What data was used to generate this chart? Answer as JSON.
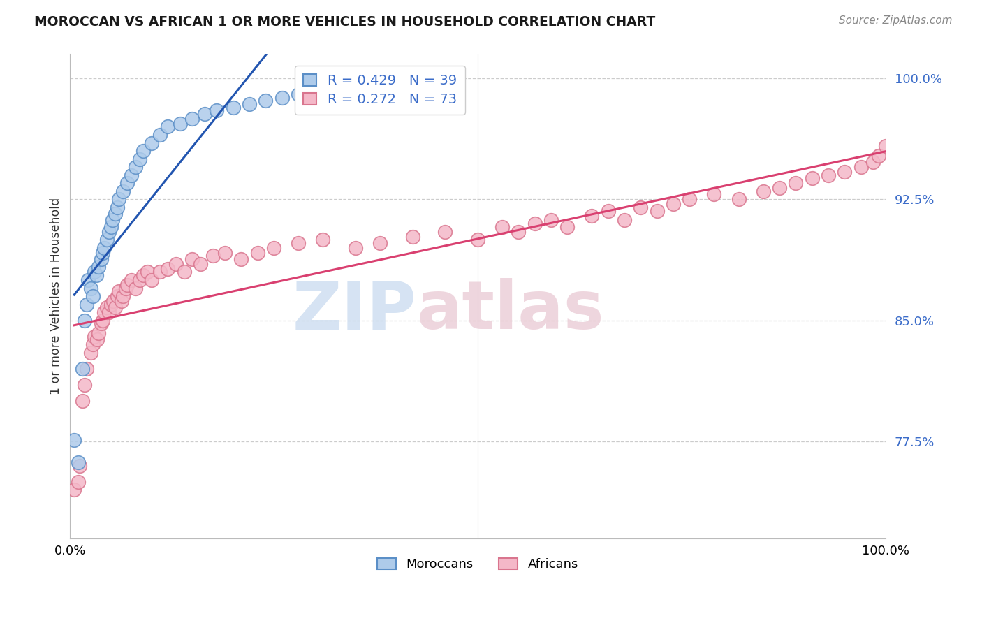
{
  "title": "MOROCCAN VS AFRICAN 1 OR MORE VEHICLES IN HOUSEHOLD CORRELATION CHART",
  "source": "Source: ZipAtlas.com",
  "ylabel": "1 or more Vehicles in Household",
  "xlim": [
    0.0,
    1.0
  ],
  "ylim": [
    0.715,
    1.015
  ],
  "yticks": [
    0.775,
    0.85,
    0.925,
    1.0
  ],
  "ytick_labels": [
    "77.5%",
    "85.0%",
    "92.5%",
    "100.0%"
  ],
  "legend_r1": "R = 0.429",
  "legend_n1": "N = 39",
  "legend_r2": "R = 0.272",
  "legend_n2": "N = 73",
  "moroccan_color": "#aecbea",
  "african_color": "#f4b8c8",
  "moroccan_edge": "#5b8fc7",
  "african_edge": "#d9758e",
  "trend_moroccan": "#2255b0",
  "trend_african": "#d94070",
  "background": "#ffffff",
  "grid_color": "#cccccc",
  "moroccan_x": [
    0.005,
    0.01,
    0.015,
    0.018,
    0.02,
    0.022,
    0.025,
    0.028,
    0.03,
    0.032,
    0.035,
    0.038,
    0.04,
    0.042,
    0.045,
    0.048,
    0.05,
    0.052,
    0.055,
    0.058,
    0.06,
    0.065,
    0.07,
    0.075,
    0.08,
    0.085,
    0.09,
    0.1,
    0.11,
    0.12,
    0.135,
    0.15,
    0.165,
    0.18,
    0.2,
    0.22,
    0.24,
    0.26,
    0.28
  ],
  "moroccan_y": [
    0.776,
    0.762,
    0.82,
    0.85,
    0.86,
    0.875,
    0.87,
    0.865,
    0.88,
    0.878,
    0.883,
    0.888,
    0.892,
    0.895,
    0.9,
    0.905,
    0.908,
    0.912,
    0.916,
    0.92,
    0.925,
    0.93,
    0.935,
    0.94,
    0.945,
    0.95,
    0.955,
    0.96,
    0.965,
    0.97,
    0.972,
    0.975,
    0.978,
    0.98,
    0.982,
    0.984,
    0.986,
    0.988,
    0.99
  ],
  "african_x": [
    0.005,
    0.01,
    0.012,
    0.015,
    0.018,
    0.02,
    0.025,
    0.028,
    0.03,
    0.033,
    0.035,
    0.038,
    0.04,
    0.042,
    0.045,
    0.048,
    0.05,
    0.053,
    0.055,
    0.058,
    0.06,
    0.063,
    0.065,
    0.068,
    0.07,
    0.075,
    0.08,
    0.085,
    0.09,
    0.095,
    0.1,
    0.11,
    0.12,
    0.13,
    0.14,
    0.15,
    0.16,
    0.175,
    0.19,
    0.21,
    0.23,
    0.25,
    0.28,
    0.31,
    0.35,
    0.38,
    0.42,
    0.46,
    0.5,
    0.53,
    0.55,
    0.57,
    0.59,
    0.61,
    0.64,
    0.66,
    0.68,
    0.7,
    0.72,
    0.74,
    0.76,
    0.79,
    0.82,
    0.85,
    0.87,
    0.89,
    0.91,
    0.93,
    0.95,
    0.97,
    0.985,
    0.992,
    1.0
  ],
  "african_y": [
    0.745,
    0.75,
    0.76,
    0.8,
    0.81,
    0.82,
    0.83,
    0.835,
    0.84,
    0.838,
    0.842,
    0.848,
    0.85,
    0.855,
    0.858,
    0.855,
    0.86,
    0.862,
    0.858,
    0.865,
    0.868,
    0.862,
    0.865,
    0.87,
    0.872,
    0.875,
    0.87,
    0.875,
    0.878,
    0.88,
    0.875,
    0.88,
    0.882,
    0.885,
    0.88,
    0.888,
    0.885,
    0.89,
    0.892,
    0.888,
    0.892,
    0.895,
    0.898,
    0.9,
    0.895,
    0.898,
    0.902,
    0.905,
    0.9,
    0.908,
    0.905,
    0.91,
    0.912,
    0.908,
    0.915,
    0.918,
    0.912,
    0.92,
    0.918,
    0.922,
    0.925,
    0.928,
    0.925,
    0.93,
    0.932,
    0.935,
    0.938,
    0.94,
    0.942,
    0.945,
    0.948,
    0.952,
    0.958
  ],
  "watermark_zip_color": "#c5d8ee",
  "watermark_atlas_color": "#e8c5d0"
}
